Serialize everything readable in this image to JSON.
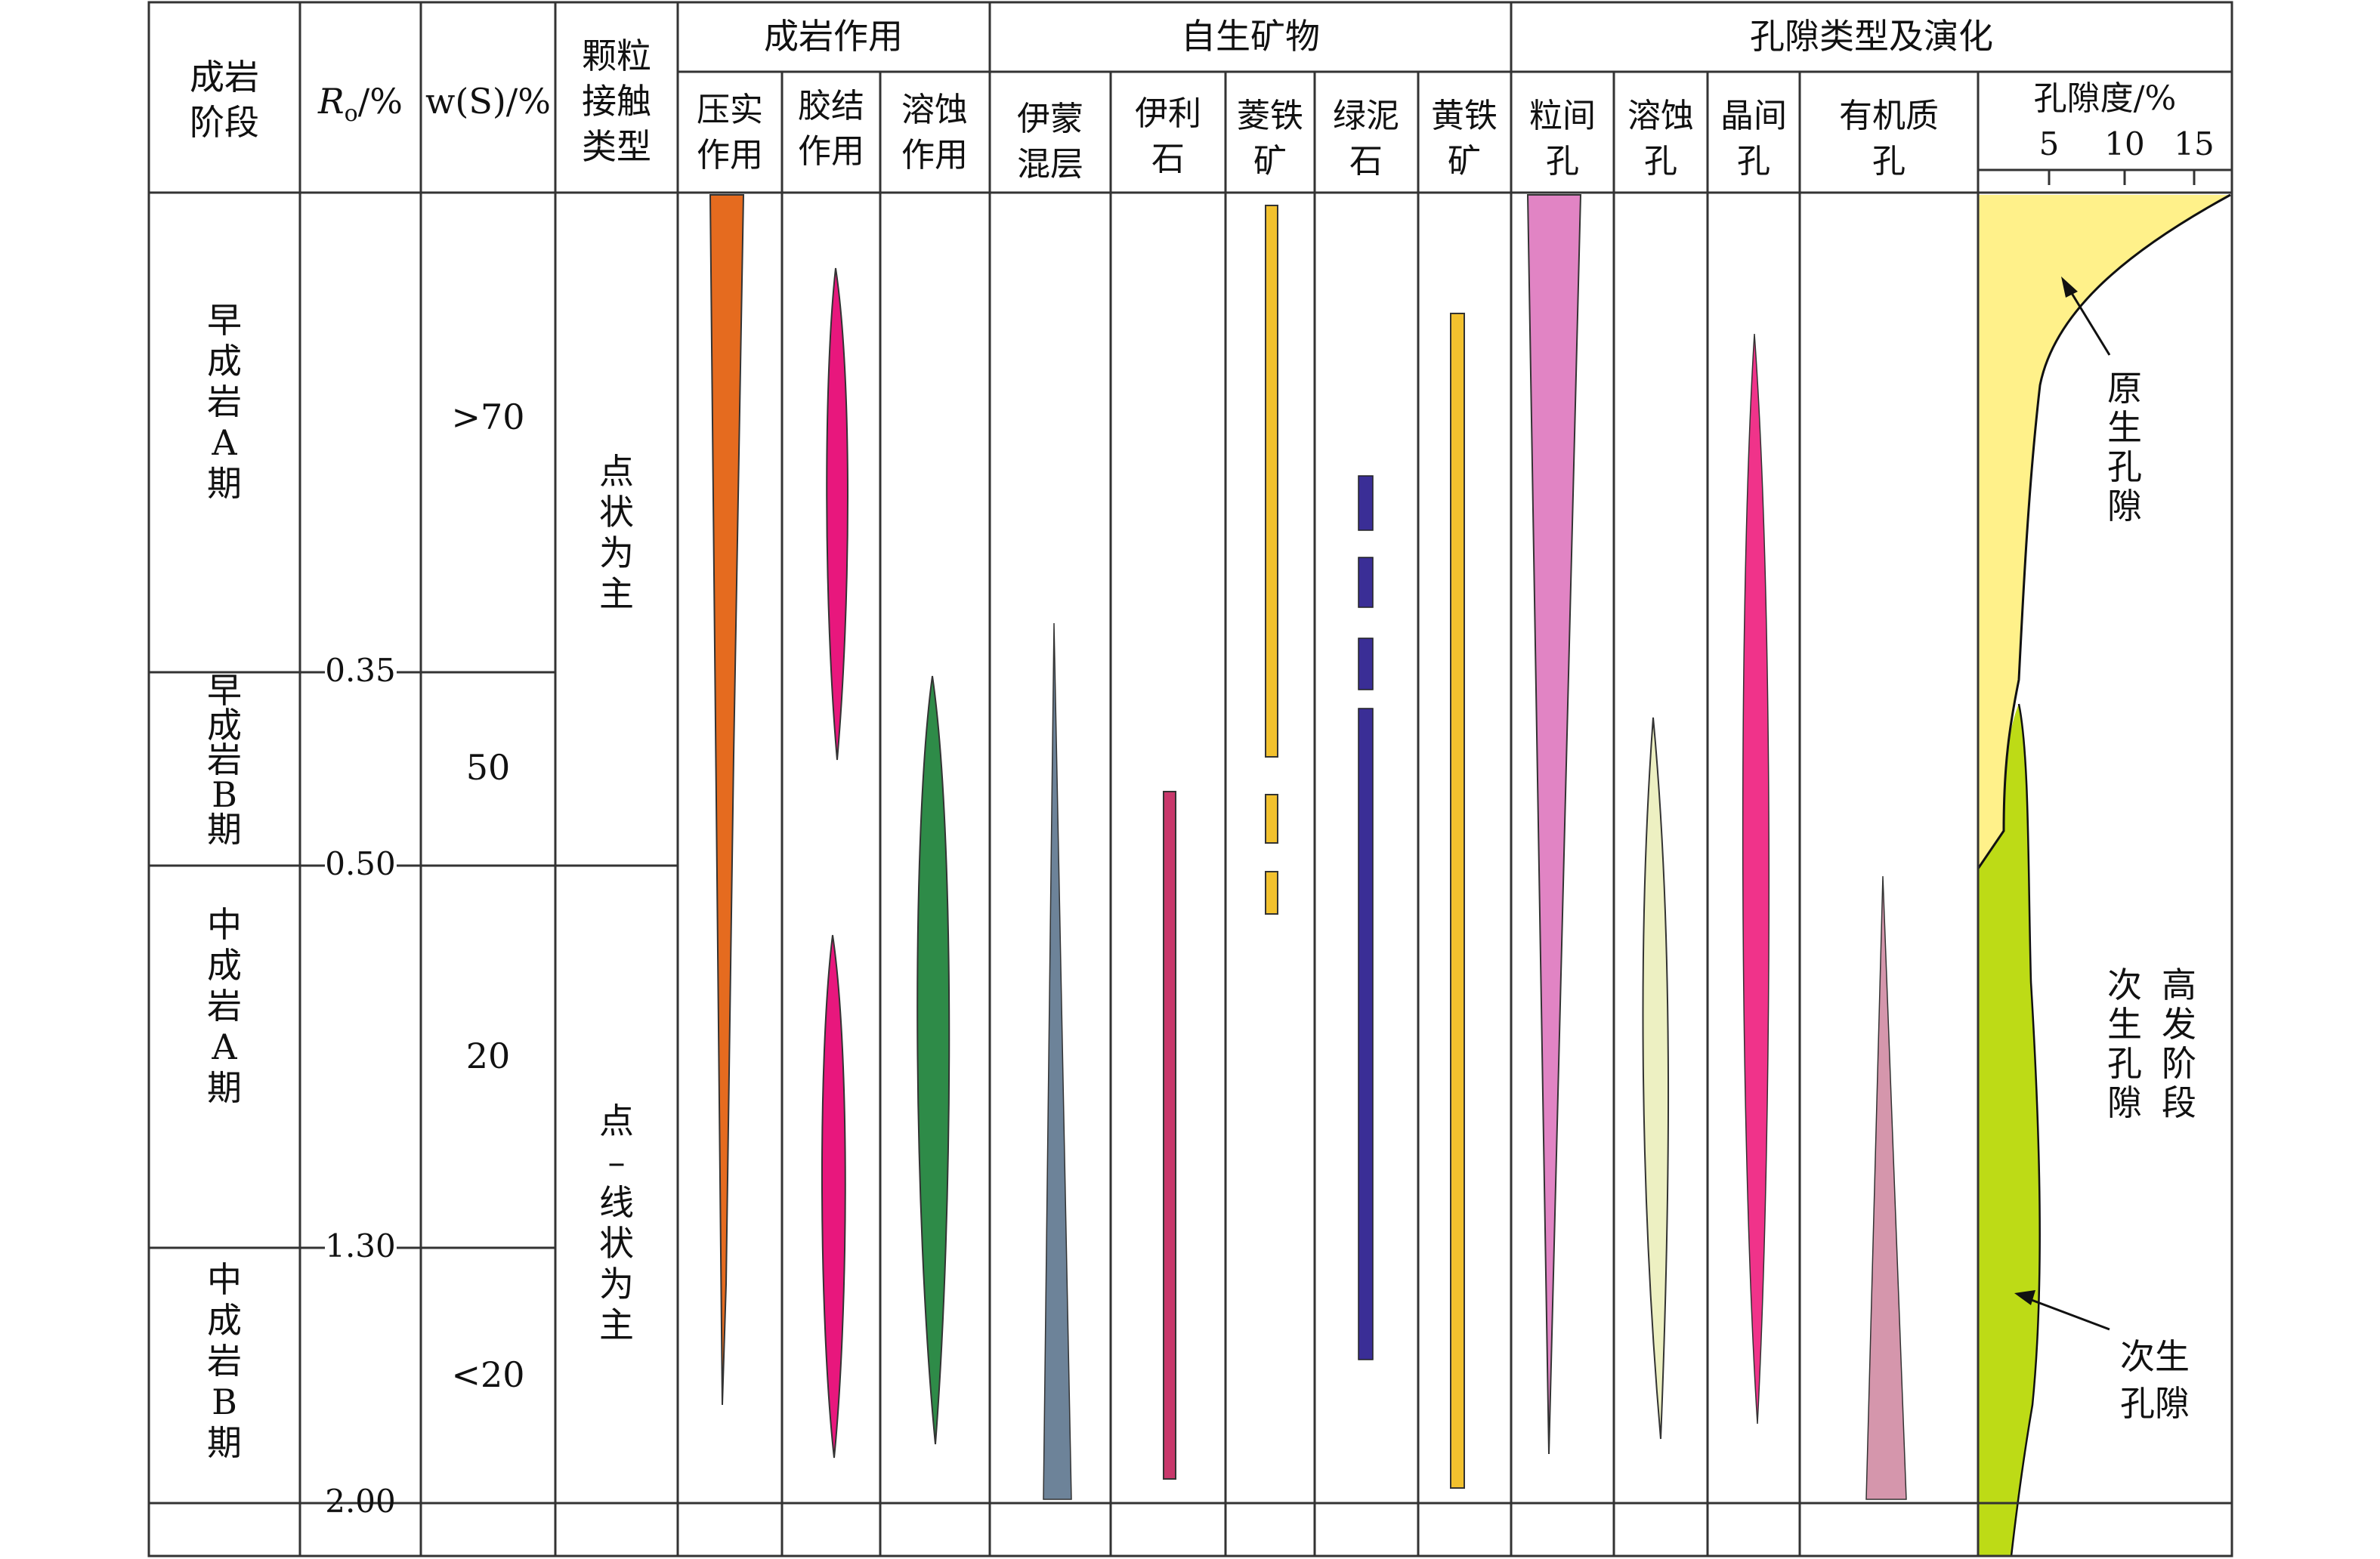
{
  "headers": {
    "stage": [
      "成岩",
      "阶段"
    ],
    "ro": "/%",
    "ro_symbol": "R",
    "ro_sub": "o",
    "ws": "w(S)/%",
    "contact": [
      "颗粒",
      "接触",
      "类型"
    ],
    "diagenesis_group": "成岩作用",
    "minerals_group": "自生矿物",
    "pores_group": "孔隙类型及演化",
    "compaction": [
      "压实",
      "作用"
    ],
    "cementation": [
      "胶结",
      "作用"
    ],
    "dissolution": [
      "溶蚀",
      "作用"
    ],
    "illite_smectite": [
      "伊蒙",
      "混层"
    ],
    "illite": [
      "伊利",
      "石"
    ],
    "siderite": [
      "菱铁",
      "矿"
    ],
    "chlorite": [
      "绿泥",
      "石"
    ],
    "pyrite": [
      "黄铁",
      "矿"
    ],
    "intergranular": [
      "粒间",
      "孔"
    ],
    "dissolution_pore": [
      "溶蚀",
      "孔"
    ],
    "intercrystal": [
      "晶间",
      "孔"
    ],
    "organic": [
      "有机质",
      "孔"
    ],
    "porosity": "孔隙度/%",
    "porosity_ticks": [
      "5",
      "10",
      "15"
    ]
  },
  "stages": [
    {
      "label": "早成岩A期",
      "ws": ">70"
    },
    {
      "label": "早成岩B期",
      "ws": "50"
    },
    {
      "label": "中成岩A期",
      "ws": "20"
    },
    {
      "label": "中成岩B期",
      "ws": "<20"
    }
  ],
  "ro_boundaries": [
    "0.35",
    "0.50",
    "1.30",
    "2.00"
  ],
  "contacts": [
    "点状为主",
    "点–线状为主"
  ],
  "annotations": {
    "primary": "原生孔隙",
    "secondary_peak_col1": "次生孔隙",
    "secondary_peak_col2": "高发阶段",
    "secondary": [
      "次生",
      "孔隙"
    ]
  },
  "colors": {
    "compaction": "#E56B1F",
    "cementation": "#E8177D",
    "dissolution": "#2E8B48",
    "illite_smectite": "#6D8399",
    "illite": "#C8386B",
    "siderite": "#F2C12E",
    "chlorite": "#3A2E96",
    "pyrite": "#F2C12E",
    "intergranular": "#E184C4",
    "dissolution_pore": "#EDF0C2",
    "intercrystal": "#F0338A",
    "organic": "#D596AC",
    "primary_porosity": "#FFF18A",
    "secondary_porosity": "#BDDB16"
  }
}
